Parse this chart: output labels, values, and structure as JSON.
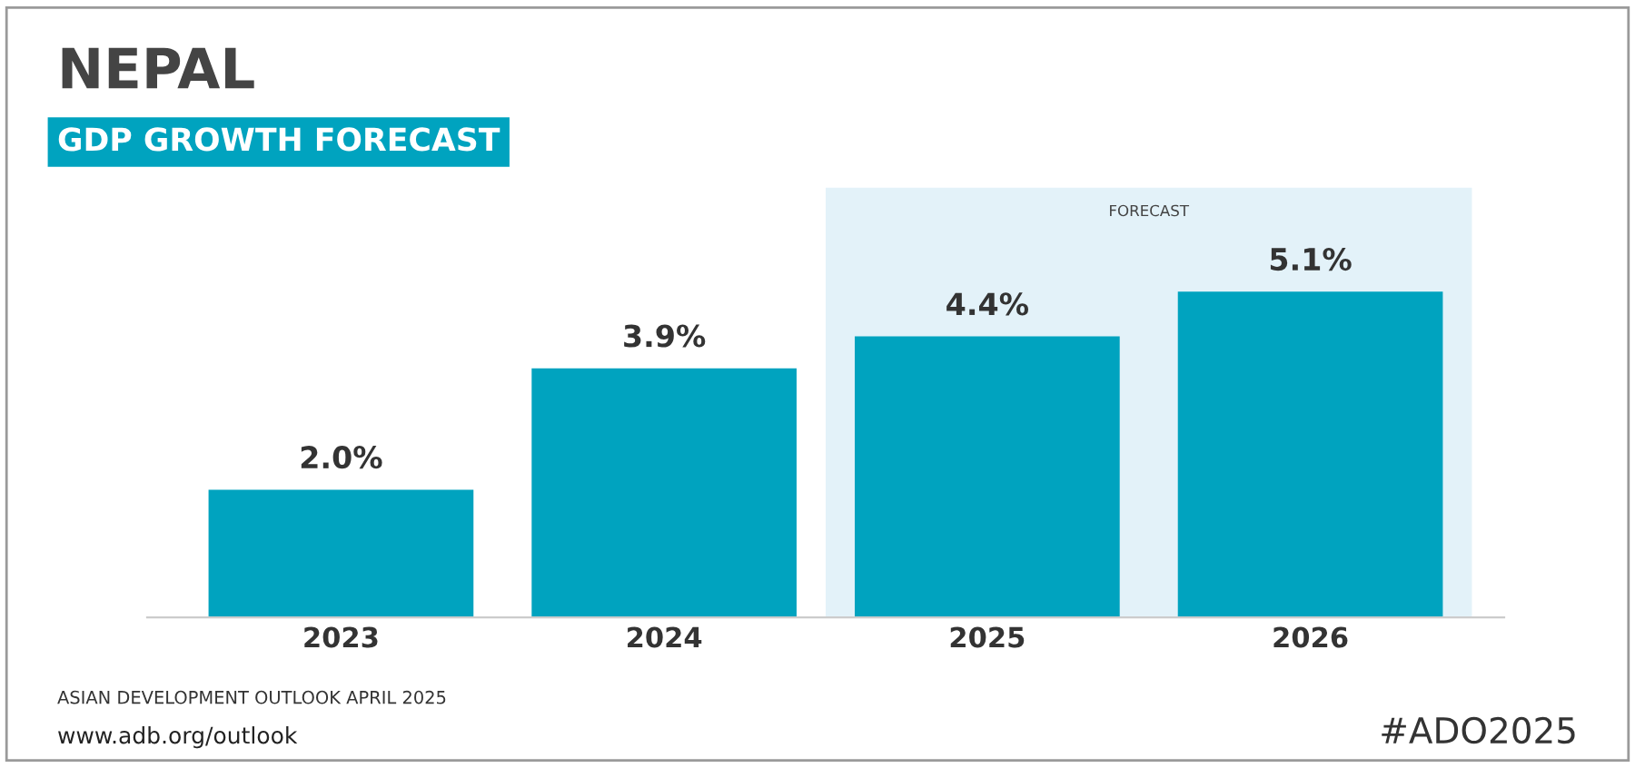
{
  "chart_data": {
    "type": "bar",
    "title": "NEPAL",
    "subtitle": "GDP GROWTH FORECAST",
    "categories": [
      "2023",
      "2024",
      "2025",
      "2026"
    ],
    "values": [
      2.0,
      3.9,
      4.4,
      5.1
    ],
    "value_labels": [
      "2.0%",
      "3.9%",
      "4.4%",
      "5.1%"
    ],
    "color": "#00a3bf",
    "bands": [
      {
        "axis": "x",
        "from": "2025",
        "to": "2026",
        "label": "FORECAST",
        "color": "#e3f2f9"
      }
    ],
    "annotations": [
      "ASIAN DEVELOPMENT OUTLOOK APRIL 2025",
      "www.adb.org/outlook",
      "#ADO2025"
    ],
    "grid": false,
    "legend": false
  }
}
